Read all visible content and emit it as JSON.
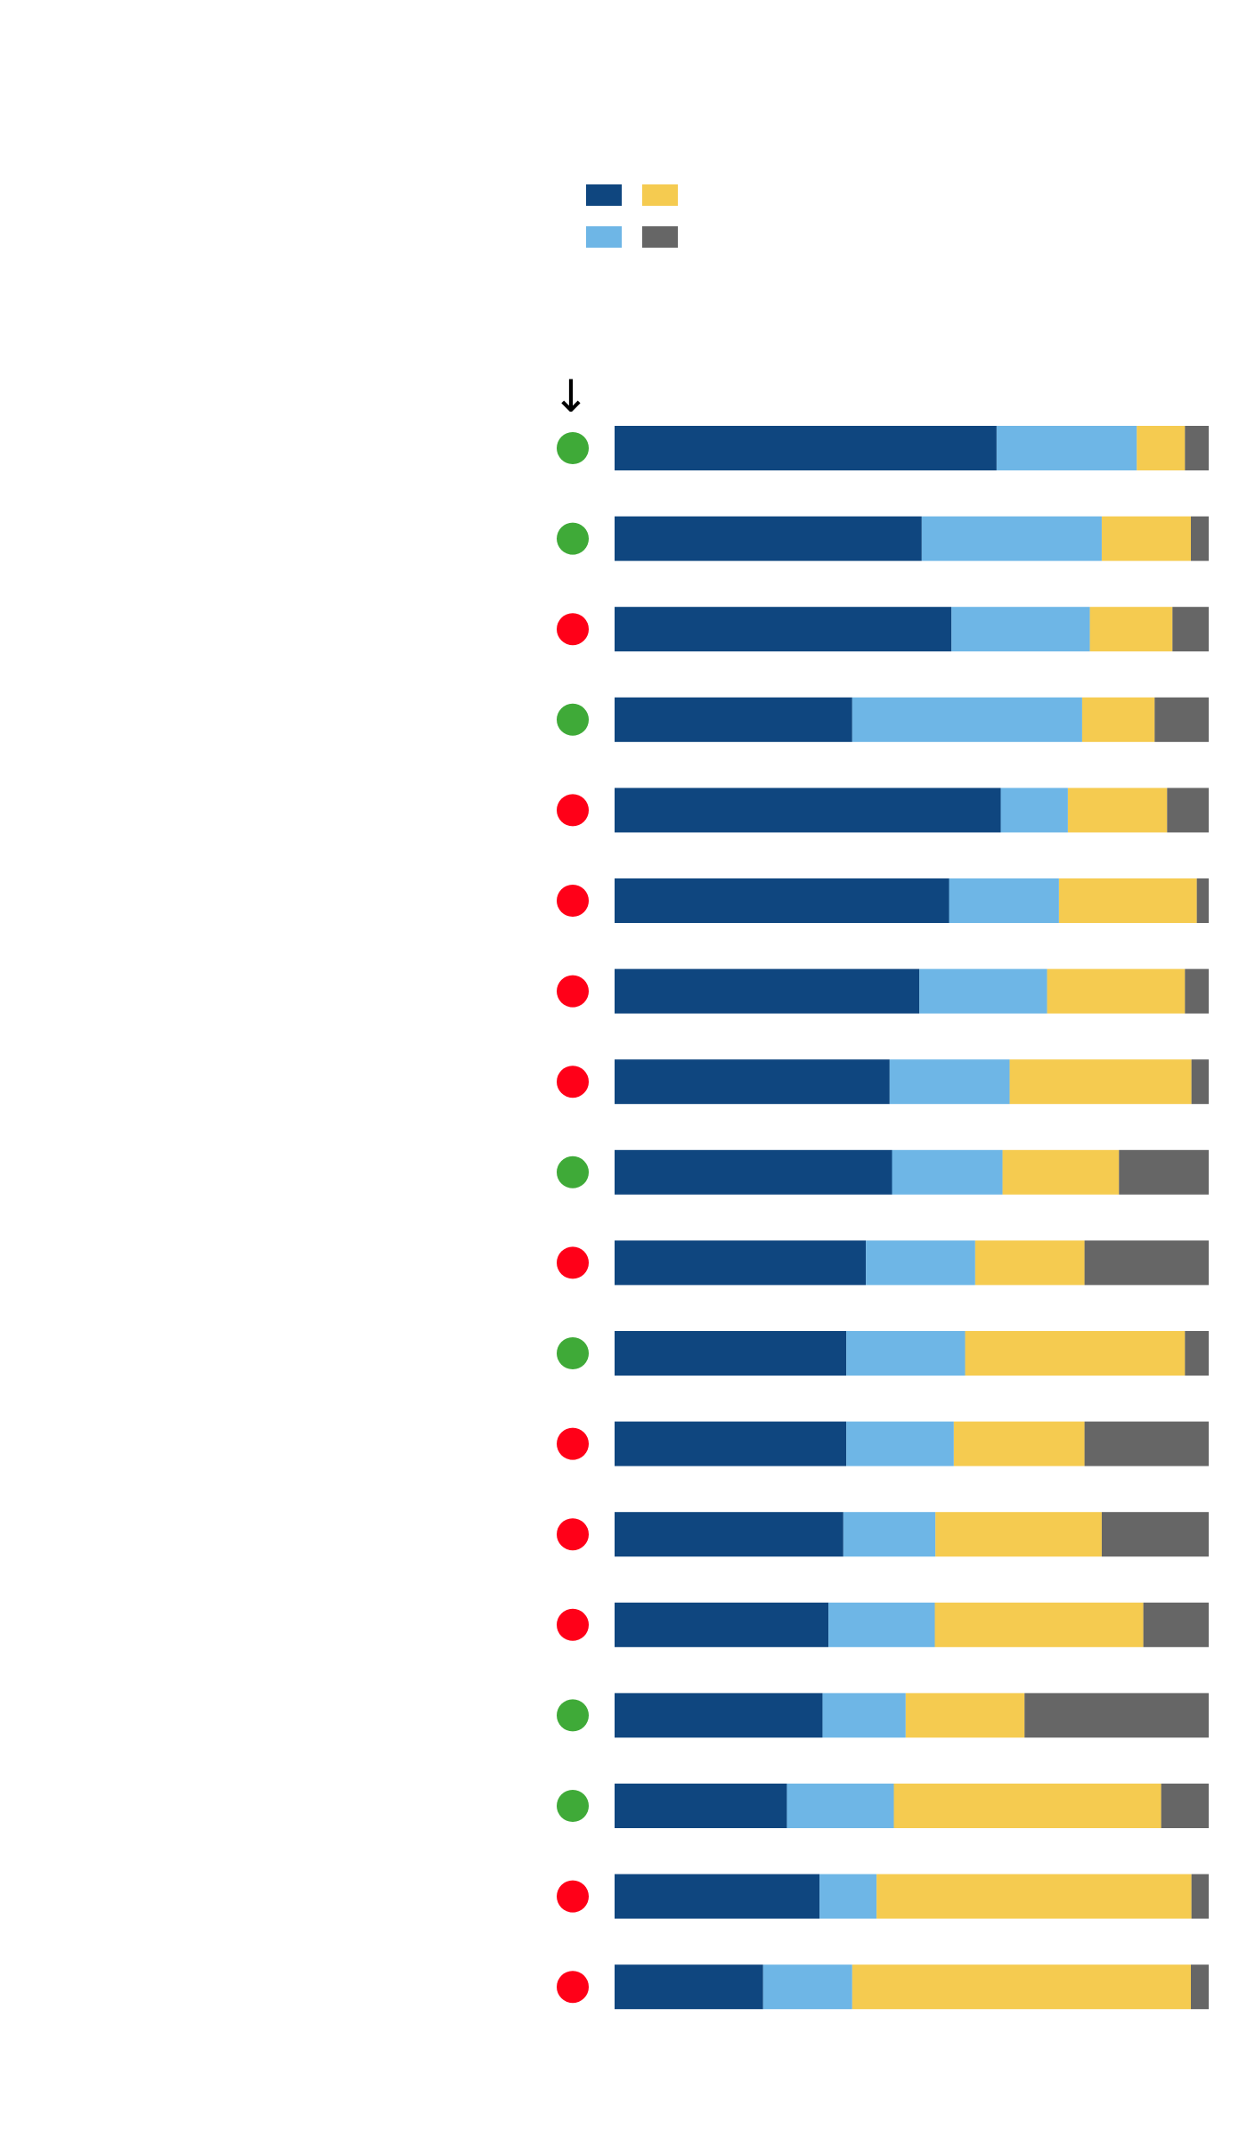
{
  "chart_data": {
    "type": "bar",
    "orientation": "horizontal",
    "stacked": true,
    "normalized": true,
    "title": "",
    "xlabel": "",
    "ylabel": "",
    "grid": false,
    "legend_position": "top",
    "categories": [
      "",
      "",
      "",
      "",
      "",
      "",
      "",
      "",
      "",
      "",
      "",
      "",
      "",
      "",
      "",
      "",
      "",
      ""
    ],
    "series": [
      {
        "color": "#0f467f",
        "values": [
          64.3,
          51.7,
          56.7,
          40.0,
          65.0,
          56.3,
          51.3,
          46.3,
          46.7,
          42.3,
          39.0,
          39.0,
          38.5,
          36.0,
          35.0,
          29.0,
          34.5,
          25.0
        ]
      },
      {
        "color": "#6eb6e6",
        "values": [
          23.6,
          30.3,
          23.3,
          38.7,
          11.3,
          18.5,
          21.5,
          20.2,
          18.6,
          18.4,
          20.0,
          18.1,
          15.5,
          17.9,
          14.0,
          18.0,
          9.6,
          15.0
        ]
      },
      {
        "color": "#f5cb50",
        "values": [
          8.1,
          15.0,
          13.9,
          12.2,
          16.7,
          23.2,
          23.2,
          30.6,
          19.6,
          18.4,
          37.0,
          22.0,
          28.0,
          35.1,
          20.0,
          45.0,
          53.0,
          57.0
        ]
      },
      {
        "color": "#666666",
        "values": [
          4.0,
          3.0,
          6.1,
          9.1,
          7.0,
          2.0,
          4.0,
          2.9,
          15.1,
          20.9,
          4.0,
          20.9,
          18.0,
          11.0,
          31.0,
          8.0,
          2.9,
          3.0
        ]
      }
    ],
    "status_markers": [
      "green",
      "green",
      "red",
      "green",
      "red",
      "red",
      "red",
      "red",
      "green",
      "red",
      "green",
      "red",
      "red",
      "red",
      "green",
      "green",
      "red",
      "red"
    ],
    "status_colors": {
      "green": "#3faa38",
      "red": "#ff0018"
    },
    "header_arrow": "↓"
  }
}
